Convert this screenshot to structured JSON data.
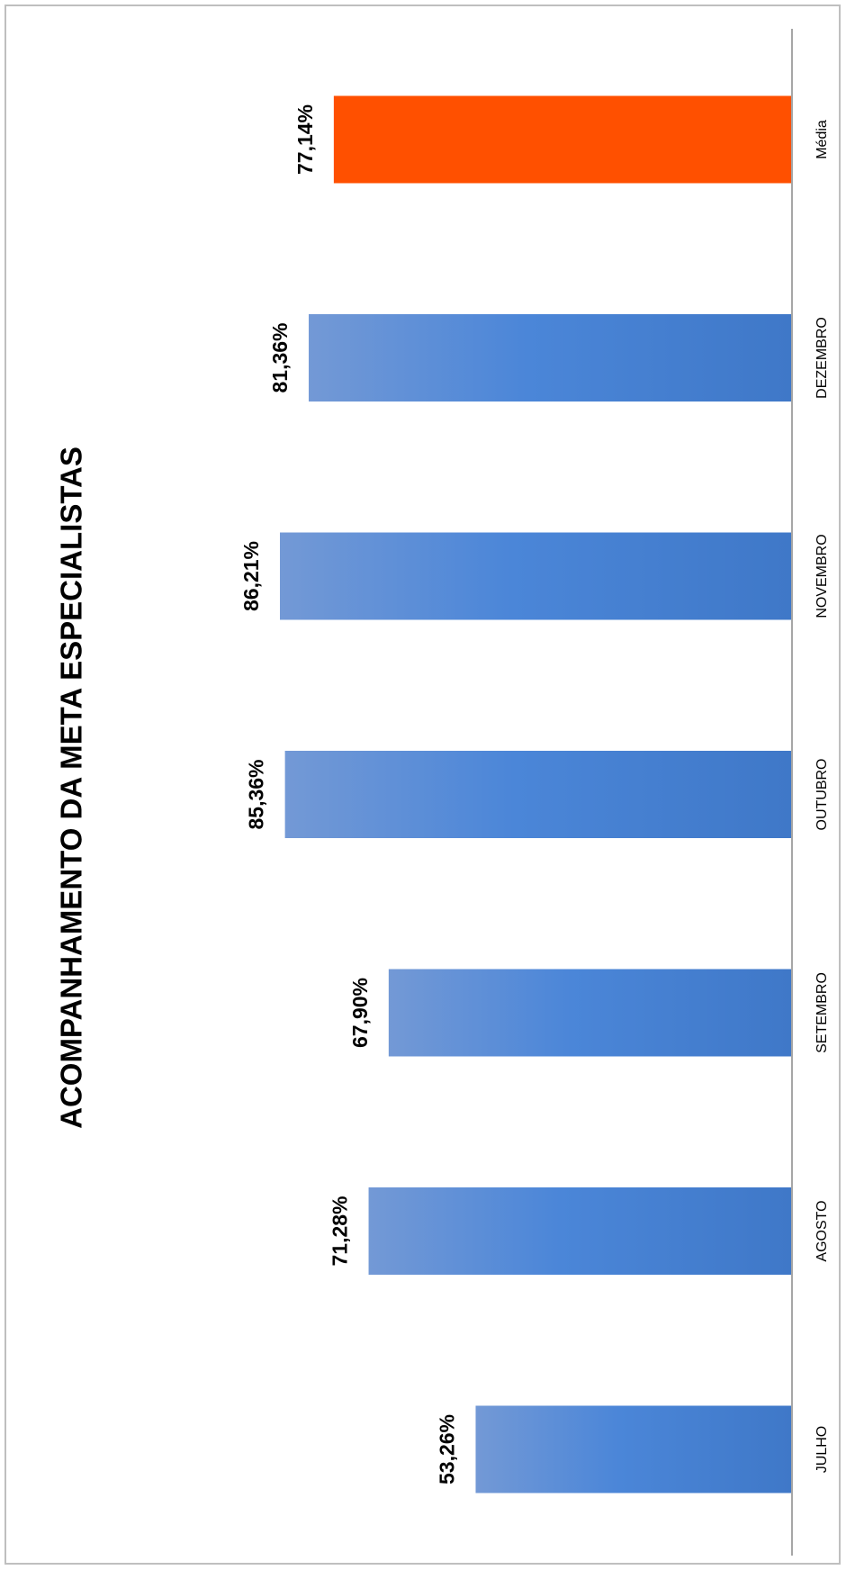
{
  "chart_data": {
    "type": "bar",
    "orientation": "horizontal",
    "title": "ACOMPANHAMENTO DA META ESPECIALISTAS",
    "categories": [
      "JULHO",
      "AGOSTO",
      "SETEMBRO",
      "OUTUBRO",
      "NOVEMBRO",
      "DEZEMBRO",
      "Média"
    ],
    "values": [
      53.26,
      71.28,
      67.9,
      85.36,
      86.21,
      81.36,
      77.14
    ],
    "value_labels": [
      "53,26%",
      "71,28%",
      "67,90%",
      "85,36%",
      "86,21%",
      "81,36%",
      "77,14%"
    ],
    "xlim": [
      0,
      100
    ],
    "grid": false,
    "legend": "none",
    "colors": {
      "bar": "#3f78c8",
      "bar_light": "#7399d6",
      "highlight": "#ff5000",
      "axis": "#a6a6a6"
    },
    "highlight_category": "Média"
  }
}
